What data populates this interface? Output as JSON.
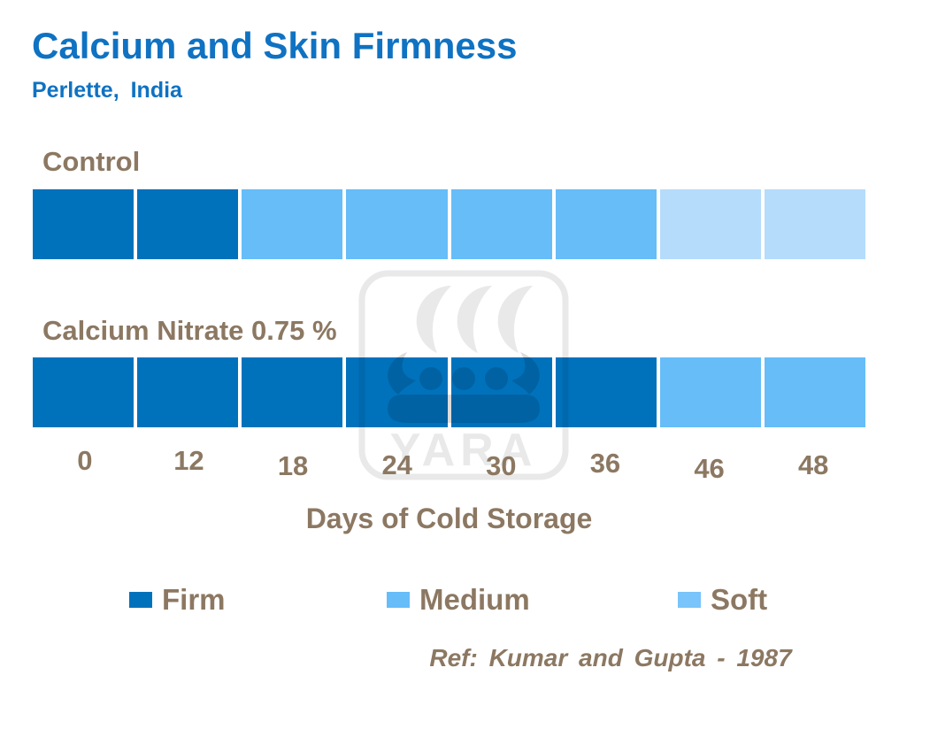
{
  "header": {
    "title": "Calcium and Skin Firmness",
    "subtitle": "Perlette, India"
  },
  "colors": {
    "title_blue": "#0F72C2",
    "text_brown": "#8C7862",
    "firm": "#0072BC",
    "medium": "#66BDF8",
    "soft": "#B5DCFB",
    "legend_soft_swatch": "#79C4FA",
    "watermark_gray": "#E9E9E9",
    "watermark_gray_dark": "#DCDCDC"
  },
  "chart_data": {
    "type": "bar",
    "subtype": "segmented-firmness-strips",
    "categories": [
      "0",
      "12",
      "18",
      "24",
      "30",
      "36",
      "46",
      "48"
    ],
    "xlabel": "Days of Cold Storage",
    "series": [
      {
        "name": "Control",
        "values": [
          "Firm",
          "Firm",
          "Medium",
          "Medium",
          "Medium",
          "Medium",
          "Soft",
          "Soft"
        ]
      },
      {
        "name": "Calcium Nitrate 0.75 %",
        "values": [
          "Firm",
          "Firm",
          "Firm",
          "Firm",
          "Firm",
          "Firm",
          "Medium",
          "Medium"
        ]
      }
    ],
    "legend": [
      "Firm",
      "Medium",
      "Soft"
    ],
    "legend_position": "bottom",
    "grid": false
  },
  "watermark": {
    "name": "yara-logo",
    "text": "YARA"
  },
  "footer": {
    "reference": "Ref: Kumar and Gupta - 1987"
  }
}
